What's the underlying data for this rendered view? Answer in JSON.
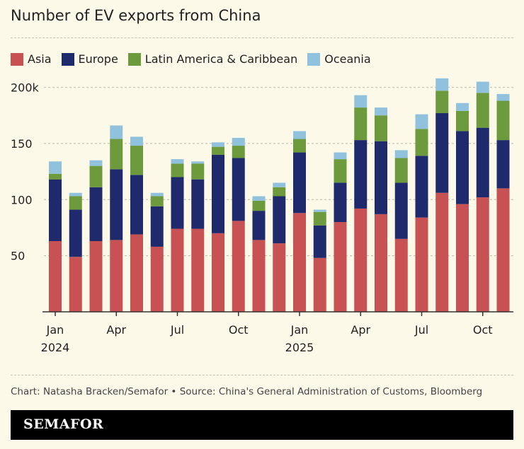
{
  "chart_data": {
    "type": "bar",
    "stacked": true,
    "title": "Number of EV exports from China",
    "categories": [
      "Jan 2024",
      "Feb 2024",
      "Mar 2024",
      "Apr 2024",
      "May 2024",
      "Jun 2024",
      "Jul 2024",
      "Aug 2024",
      "Sep 2024",
      "Oct 2024",
      "Nov 2024",
      "Dec 2024",
      "Jan 2025",
      "Feb 2025",
      "Mar 2025",
      "Apr 2025",
      "May 2025",
      "Jun 2025",
      "Jul 2025",
      "Aug 2025",
      "Sep 2025",
      "Oct 2025",
      "Nov 2025"
    ],
    "x_tick_labels": [
      {
        "index": 0,
        "month": "Jan",
        "year": "2024"
      },
      {
        "index": 3,
        "month": "Apr",
        "year": ""
      },
      {
        "index": 6,
        "month": "Jul",
        "year": ""
      },
      {
        "index": 9,
        "month": "Oct",
        "year": ""
      },
      {
        "index": 12,
        "month": "Jan",
        "year": "2025"
      },
      {
        "index": 15,
        "month": "Apr",
        "year": ""
      },
      {
        "index": 18,
        "month": "Jul",
        "year": ""
      },
      {
        "index": 21,
        "month": "Oct",
        "year": ""
      }
    ],
    "y_ticks": [
      {
        "value": 200,
        "label": "200k"
      },
      {
        "value": 150,
        "label": "150"
      },
      {
        "value": 100,
        "label": "100"
      },
      {
        "value": 50,
        "label": "50"
      }
    ],
    "ylim": [
      0,
      200
    ],
    "grid": true,
    "legend_placement": "top-left",
    "series": [
      {
        "name": "Asia",
        "color": "#c75153",
        "values": [
          63,
          49,
          63,
          64,
          69,
          58,
          74,
          74,
          70,
          81,
          64,
          61,
          88,
          48,
          80,
          92,
          87,
          65,
          84,
          106,
          96,
          102,
          110
        ]
      },
      {
        "name": "Europe",
        "color": "#1f2a6c",
        "values": [
          55,
          42,
          48,
          63,
          53,
          36,
          46,
          44,
          70,
          56,
          26,
          42,
          54,
          29,
          35,
          61,
          65,
          50,
          55,
          71,
          65,
          62,
          43
        ]
      },
      {
        "name": "Latin America & Caribbean",
        "color": "#6c9a3d",
        "values": [
          5,
          12,
          19,
          27,
          26,
          9,
          12,
          14,
          7,
          11,
          9,
          8,
          12,
          12,
          21,
          29,
          23,
          22,
          24,
          20,
          18,
          31,
          35
        ]
      },
      {
        "name": "Oceania",
        "color": "#91c2dd",
        "values": [
          11,
          3,
          5,
          12,
          8,
          3,
          4,
          2,
          4,
          7,
          4,
          4,
          7,
          2,
          6,
          11,
          7,
          7,
          13,
          11,
          7,
          10,
          6
        ]
      }
    ]
  },
  "source": "Chart: Natasha Bracken/Semafor • Source: China's General Administration of Customs, Bloomberg",
  "logo": "SEMAFOR"
}
